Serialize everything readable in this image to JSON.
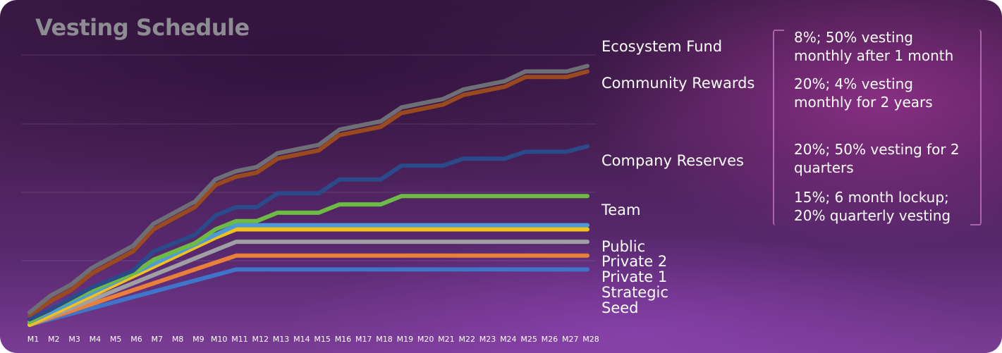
{
  "title": "Vesting Schedule",
  "notes": [
    "8%; 50% vesting monthly after 1 month",
    "20%; 4% vesting monthly for 2 years",
    "20%; 50% vesting for 2 quarters",
    "15%; 6 month lockup; 20% quarterly vesting"
  ],
  "chart_data": {
    "type": "line",
    "title": "Vesting Schedule",
    "xlabel": "",
    "ylabel": "",
    "ylim": [
      0,
      20
    ],
    "grid": true,
    "legend": "right (labels at line ends)",
    "x": [
      "M1",
      "M2",
      "M3",
      "M4",
      "M5",
      "M6",
      "M7",
      "M8",
      "M9",
      "M10",
      "M11",
      "M12",
      "M13",
      "M14",
      "M15",
      "M16",
      "M17",
      "M18",
      "M19",
      "M20",
      "M21",
      "M22",
      "M23",
      "M24",
      "M25",
      "M26",
      "M27",
      "M28"
    ],
    "series": [
      {
        "name": "Ecosystem Fund",
        "color": "#6e6e76",
        "values": [
          1.0,
          2.2,
          3.0,
          4.2,
          5.0,
          5.8,
          7.4,
          8.2,
          9.0,
          10.6,
          11.2,
          11.5,
          12.5,
          12.8,
          13.1,
          14.2,
          14.5,
          14.8,
          15.8,
          16.1,
          16.4,
          17.1,
          17.4,
          17.7,
          18.4,
          18.4,
          18.4,
          18.8
        ]
      },
      {
        "name": "Community Rewards",
        "color": "#9a4a1e",
        "values": [
          0.8,
          1.8,
          2.6,
          3.8,
          4.6,
          5.4,
          7.0,
          7.8,
          8.6,
          10.2,
          10.8,
          11.1,
          12.1,
          12.4,
          12.7,
          13.8,
          14.1,
          14.4,
          15.4,
          15.7,
          16.0,
          16.7,
          17.0,
          17.3,
          18.0,
          18.0,
          18.0,
          18.4
        ]
      },
      {
        "name": "Company Reserves",
        "color": "#2a4a8a",
        "values": [
          0.5,
          1.2,
          2.0,
          2.8,
          3.4,
          4.0,
          5.4,
          6.0,
          6.6,
          8.0,
          8.6,
          8.6,
          9.6,
          9.6,
          9.6,
          10.6,
          10.6,
          10.6,
          11.6,
          11.6,
          11.6,
          12.1,
          12.1,
          12.1,
          12.6,
          12.6,
          12.6,
          13.0
        ]
      },
      {
        "name": "Team",
        "color": "#6dbb45",
        "values": [
          0.3,
          1.2,
          1.9,
          2.6,
          3.2,
          3.8,
          4.8,
          5.4,
          6.0,
          7.0,
          7.6,
          7.6,
          8.2,
          8.2,
          8.2,
          8.8,
          8.8,
          8.8,
          9.4,
          9.4,
          9.4,
          9.4,
          9.4,
          9.4,
          9.4,
          9.4,
          9.4,
          9.4
        ]
      },
      {
        "name": "Public",
        "color": "#4e9ad8",
        "values": [
          0.3,
          1.0,
          1.7,
          2.4,
          3.1,
          3.8,
          4.5,
          5.2,
          5.9,
          6.6,
          7.3,
          7.3,
          7.3,
          7.3,
          7.3,
          7.3,
          7.3,
          7.3,
          7.3,
          7.3,
          7.3,
          7.3,
          7.3,
          7.3,
          7.3,
          7.3,
          7.3,
          7.3
        ]
      },
      {
        "name": "Private 2",
        "color": "#f2c11a",
        "values": [
          0.1,
          0.8,
          1.5,
          2.2,
          2.9,
          3.6,
          4.3,
          5.0,
          5.7,
          6.4,
          7.0,
          7.0,
          7.0,
          7.0,
          7.0,
          7.0,
          7.0,
          7.0,
          7.0,
          7.0,
          7.0,
          7.0,
          7.0,
          7.0,
          7.0,
          7.0,
          7.0,
          7.0
        ]
      },
      {
        "name": "Private 1",
        "color": "#a0a0a4",
        "values": [
          0.1,
          0.7,
          1.3,
          1.9,
          2.5,
          3.1,
          3.7,
          4.3,
          4.9,
          5.5,
          6.1,
          6.1,
          6.1,
          6.1,
          6.1,
          6.1,
          6.1,
          6.1,
          6.1,
          6.1,
          6.1,
          6.1,
          6.1,
          6.1,
          6.1,
          6.1,
          6.1,
          6.1
        ]
      },
      {
        "name": "Strategic",
        "color": "#e8803a",
        "values": [
          0.1,
          0.6,
          1.1,
          1.6,
          2.1,
          2.6,
          3.1,
          3.6,
          4.1,
          4.6,
          5.1,
          5.1,
          5.1,
          5.1,
          5.1,
          5.1,
          5.1,
          5.1,
          5.1,
          5.1,
          5.1,
          5.1,
          5.1,
          5.1,
          5.1,
          5.1,
          5.1,
          5.1
        ]
      },
      {
        "name": "Seed",
        "color": "#3f74c8",
        "values": [
          0.1,
          0.5,
          0.9,
          1.3,
          1.7,
          2.1,
          2.5,
          2.9,
          3.3,
          3.7,
          4.1,
          4.1,
          4.1,
          4.1,
          4.1,
          4.1,
          4.1,
          4.1,
          4.1,
          4.1,
          4.1,
          4.1,
          4.1,
          4.1,
          4.1,
          4.1,
          4.1,
          4.1
        ]
      }
    ]
  }
}
